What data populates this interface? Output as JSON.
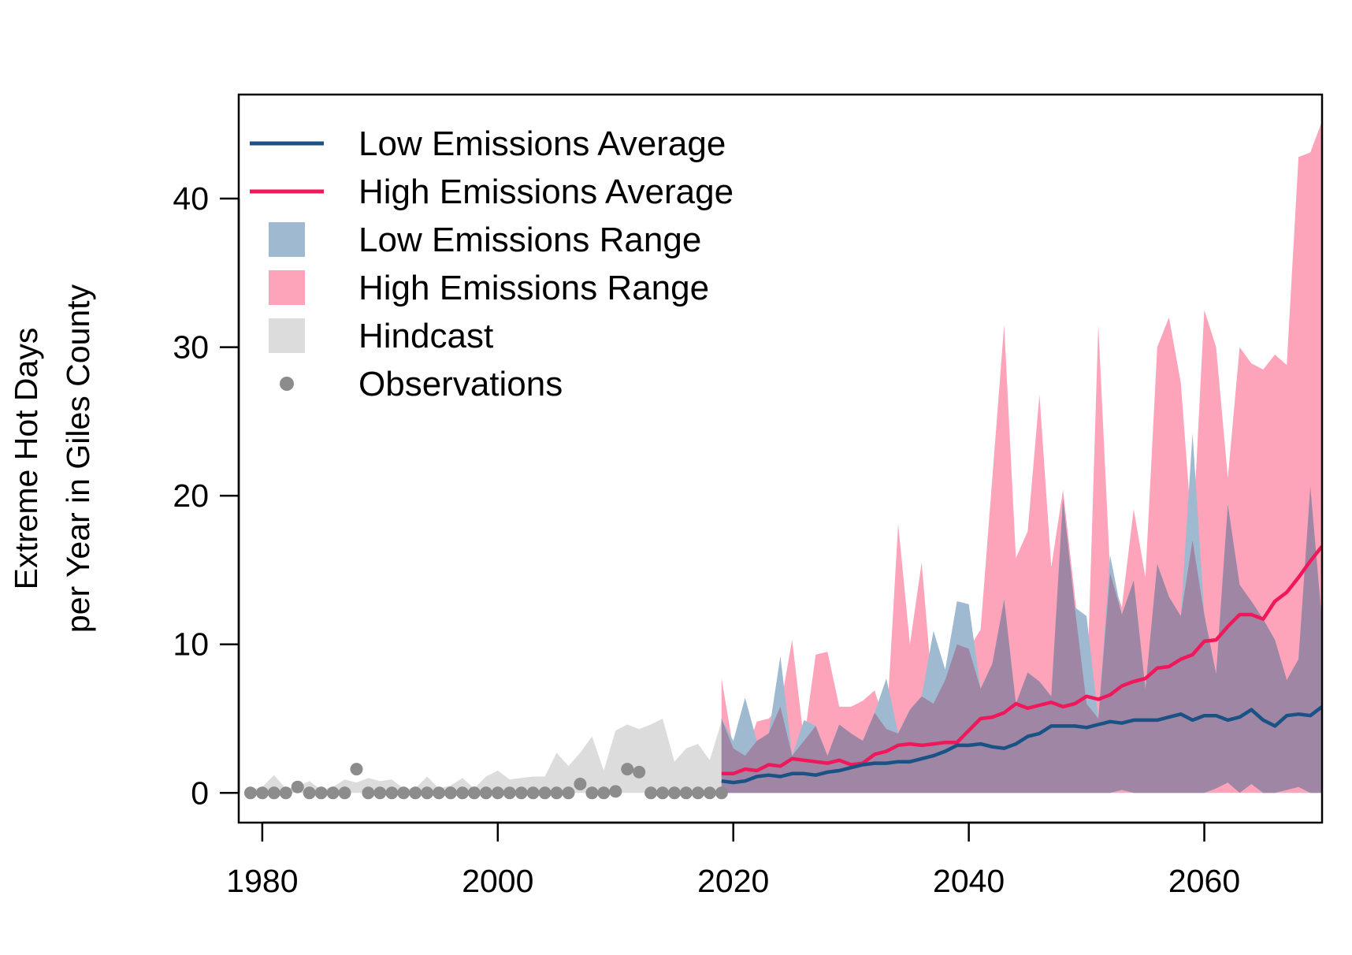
{
  "chart_data": {
    "type": "area",
    "title": "",
    "xlabel": "",
    "ylabel": [
      "Extreme Hot Days",
      "per Year in Giles County"
    ],
    "xlim": [
      1978,
      2070
    ],
    "ylim": [
      -2,
      47
    ],
    "x_ticks": [
      1980,
      2000,
      2020,
      2040,
      2060
    ],
    "y_ticks": [
      0,
      10,
      20,
      30,
      40
    ],
    "grid": false,
    "legend": {
      "position": "top-left",
      "entries": [
        {
          "label": "Low Emissions Average",
          "kind": "line",
          "color": "#1a5286"
        },
        {
          "label": "High Emissions Average",
          "kind": "line",
          "color": "#f0185a"
        },
        {
          "label": "Low Emissions Range",
          "kind": "fill",
          "color": "#9fbad0"
        },
        {
          "label": "High Emissions Range",
          "kind": "fill",
          "color": "#fda3ba"
        },
        {
          "label": "Hindcast",
          "kind": "fill",
          "color": "#dcdcdc"
        },
        {
          "label": "Observations",
          "kind": "point",
          "color": "#8c8c8c"
        }
      ]
    },
    "colors": {
      "low_avg": "#1a5286",
      "high_avg": "#f0185a",
      "low_range": "#9fbad0",
      "high_range": "#fda3ba",
      "overlap": "#9e86a4",
      "hindcast": "#dcdcdc",
      "observations": "#8c8c8c"
    },
    "hindcast": {
      "x": [
        1979,
        1980,
        1981,
        1982,
        1983,
        1984,
        1985,
        1986,
        1987,
        1988,
        1989,
        1990,
        1991,
        1992,
        1993,
        1994,
        1995,
        1996,
        1997,
        1998,
        1999,
        2000,
        2001,
        2002,
        2003,
        2004,
        2005,
        2006,
        2007,
        2008,
        2009,
        2010,
        2011,
        2012,
        2013,
        2014,
        2015,
        2016,
        2017,
        2018,
        2019
      ],
      "upper": [
        0.2,
        0.4,
        1.2,
        0.3,
        0.4,
        0.8,
        0.2,
        0.4,
        0.9,
        0.7,
        1.0,
        0.8,
        0.9,
        0.3,
        0.3,
        1.1,
        0.3,
        0.5,
        1.0,
        0.3,
        1.1,
        1.5,
        0.9,
        1.0,
        1.1,
        1.1,
        2.7,
        1.8,
        2.7,
        3.8,
        1.5,
        4.2,
        4.6,
        4.3,
        4.6,
        5.0,
        2.1,
        3.0,
        3.3,
        2.2,
        4.8
      ],
      "lower": [
        0,
        0,
        0,
        0,
        0,
        0,
        0,
        0,
        0,
        0,
        0,
        0,
        0,
        0,
        0,
        0,
        0,
        0,
        0,
        0,
        0,
        0,
        0,
        0,
        0,
        0,
        0,
        0,
        0,
        0,
        0,
        0,
        0,
        0,
        0,
        0,
        0,
        0,
        0,
        0,
        0
      ]
    },
    "observations": {
      "x": [
        1979,
        1980,
        1981,
        1982,
        1983,
        1984,
        1985,
        1986,
        1987,
        1988,
        1989,
        1990,
        1991,
        1992,
        1993,
        1994,
        1995,
        1996,
        1997,
        1998,
        1999,
        2000,
        2001,
        2002,
        2003,
        2004,
        2005,
        2006,
        2007,
        2008,
        2009,
        2010,
        2011,
        2012,
        2013,
        2014,
        2015,
        2016,
        2017,
        2018,
        2019
      ],
      "y": [
        0,
        0,
        0,
        0,
        0.4,
        0,
        0,
        0,
        0,
        1.6,
        0,
        0,
        0,
        0,
        0,
        0,
        0,
        0,
        0,
        0,
        0,
        0,
        0,
        0,
        0,
        0,
        0,
        0,
        0.6,
        0,
        0,
        0.1,
        1.6,
        1.4,
        0,
        0,
        0,
        0,
        0,
        0,
        0
      ]
    },
    "projection_x": [
      2019,
      2020,
      2021,
      2022,
      2023,
      2024,
      2025,
      2026,
      2027,
      2028,
      2029,
      2030,
      2031,
      2032,
      2033,
      2034,
      2035,
      2036,
      2037,
      2038,
      2039,
      2040,
      2041,
      2042,
      2043,
      2044,
      2045,
      2046,
      2047,
      2048,
      2049,
      2050,
      2051,
      2052,
      2053,
      2054,
      2055,
      2056,
      2057,
      2058,
      2059,
      2060,
      2061,
      2062,
      2063,
      2064,
      2065,
      2066,
      2067,
      2068,
      2069,
      2070
    ],
    "low_range": {
      "upper": [
        5.0,
        3.5,
        6.4,
        3.5,
        4.0,
        9.2,
        2.5,
        4.9,
        4.5,
        2.5,
        4.6,
        4.0,
        3.5,
        5.4,
        7.7,
        4.0,
        5.6,
        6.5,
        10.9,
        8.3,
        12.9,
        12.7,
        7.0,
        8.7,
        13.0,
        6.0,
        8.1,
        7.5,
        6.5,
        19.8,
        12.5,
        11.9,
        5.0,
        16.0,
        12.0,
        14.3,
        7.0,
        15.4,
        13.2,
        11.9,
        24.2,
        12.0,
        8.0,
        19.4,
        14.0,
        12.9,
        11.7,
        10.3,
        7.6,
        9.0,
        20.6,
        11.5
      ],
      "lower": [
        0,
        0,
        0,
        0,
        0,
        0,
        0,
        0,
        0,
        0,
        0,
        0,
        0,
        0,
        0,
        0,
        0,
        0,
        0,
        0,
        0,
        0,
        0,
        0,
        0,
        0,
        0,
        0,
        0,
        0,
        0,
        0,
        0,
        0,
        0.2,
        0,
        0,
        0,
        0,
        0,
        0,
        0,
        0.3,
        0.7,
        0,
        0.6,
        0,
        0,
        0.2,
        0.4,
        0,
        0
      ]
    },
    "high_range": {
      "upper": [
        7.7,
        3.0,
        2.5,
        4.8,
        5.0,
        5.8,
        10.3,
        3.5,
        9.3,
        9.5,
        5.8,
        5.8,
        6.2,
        6.9,
        4.3,
        18.1,
        10.0,
        15.5,
        6.0,
        7.6,
        10.0,
        9.7,
        11.0,
        21.2,
        31.5,
        15.8,
        17.6,
        26.8,
        15.2,
        20.4,
        13.3,
        6.0,
        31.5,
        14.8,
        12.5,
        19.1,
        14.5,
        30.0,
        32.0,
        27.6,
        17.0,
        32.5,
        30.0,
        21.2,
        30.0,
        28.9,
        28.5,
        29.5,
        28.8,
        42.8,
        43.1,
        45.2
      ],
      "lower": [
        0,
        0,
        0,
        0,
        0,
        0,
        0,
        0,
        0,
        0,
        0,
        0,
        0,
        0,
        0,
        0,
        0,
        0,
        0,
        0,
        0,
        0,
        0,
        0,
        0,
        0,
        0,
        0,
        0,
        0,
        0,
        0,
        0,
        0,
        0,
        0,
        0,
        0,
        0,
        0,
        0,
        0,
        0,
        0,
        0,
        0,
        0,
        0,
        0,
        0,
        0,
        0
      ]
    },
    "low_avg": [
      0.8,
      0.7,
      0.8,
      1.1,
      1.2,
      1.1,
      1.3,
      1.3,
      1.2,
      1.4,
      1.5,
      1.7,
      1.9,
      2.0,
      2.0,
      2.1,
      2.1,
      2.3,
      2.5,
      2.8,
      3.2,
      3.2,
      3.3,
      3.1,
      3.0,
      3.3,
      3.8,
      4.0,
      4.5,
      4.5,
      4.5,
      4.4,
      4.6,
      4.8,
      4.7,
      4.9,
      4.9,
      4.9,
      5.1,
      5.3,
      4.9,
      5.2,
      5.2,
      4.9,
      5.1,
      5.6,
      4.9,
      4.5,
      5.2,
      5.3,
      5.2,
      5.8
    ],
    "high_avg": [
      1.3,
      1.3,
      1.6,
      1.5,
      1.9,
      1.8,
      2.3,
      2.2,
      2.1,
      2.0,
      2.2,
      1.9,
      2.0,
      2.6,
      2.8,
      3.2,
      3.3,
      3.2,
      3.3,
      3.4,
      3.4,
      4.2,
      5.0,
      5.1,
      5.4,
      6.0,
      5.7,
      5.9,
      6.1,
      5.8,
      6.0,
      6.5,
      6.3,
      6.6,
      7.2,
      7.5,
      7.7,
      8.4,
      8.5,
      9.0,
      9.3,
      10.2,
      10.3,
      11.2,
      12.0,
      12.0,
      11.7,
      12.9,
      13.5,
      14.5,
      15.6,
      16.6
    ]
  }
}
